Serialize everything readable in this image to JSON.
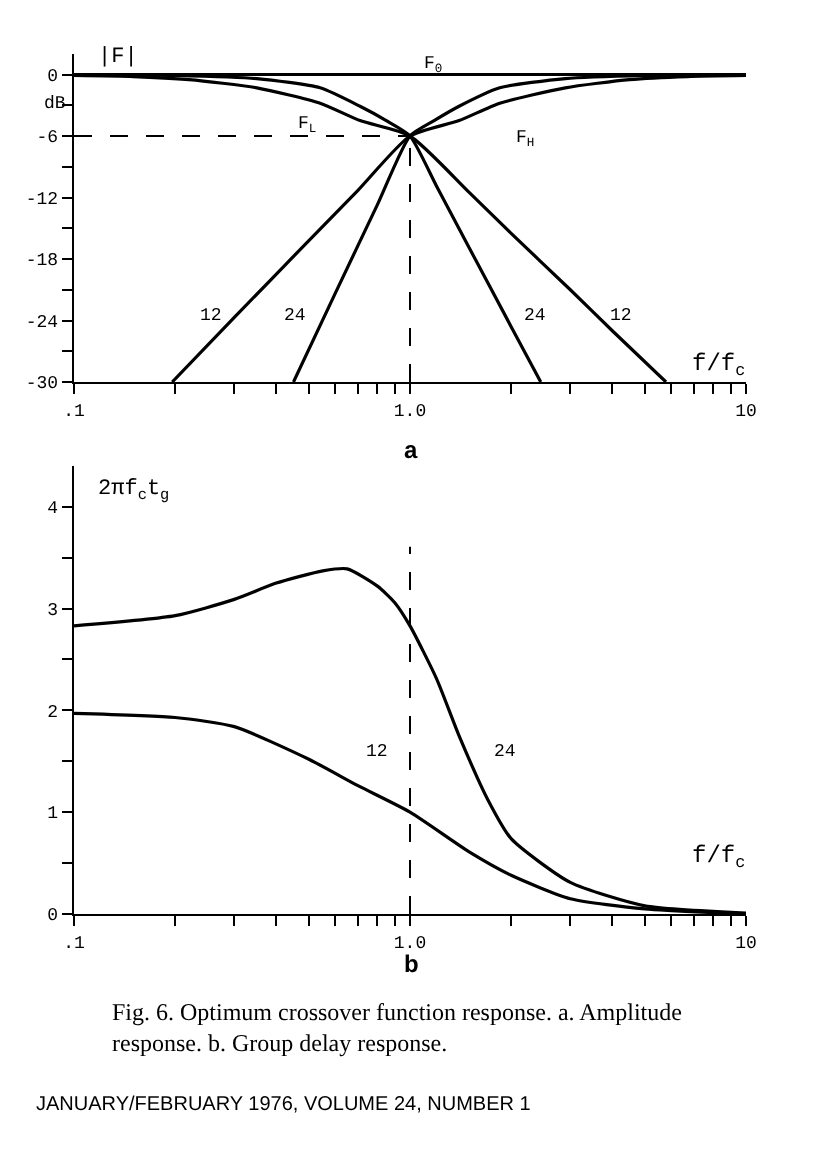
{
  "chart_data": [
    {
      "type": "line",
      "title": "a",
      "xlabel": "f/f$_{c}$",
      "ylabel": "|F|",
      "log": "x",
      "marker": "none",
      "line_style": "solid",
      "xlim": [
        0.1,
        10
      ],
      "ylim": [
        -30,
        2
      ],
      "xticks": [
        {
          "value": 0.1,
          "label": ".1"
        },
        {
          "value": 0.2,
          "label": null
        },
        {
          "value": 0.3,
          "label": null
        },
        {
          "value": 0.4,
          "label": null
        },
        {
          "value": 0.5,
          "label": null
        },
        {
          "value": 0.6,
          "label": null
        },
        {
          "value": 0.7,
          "label": null
        },
        {
          "value": 0.8,
          "label": null
        },
        {
          "value": 0.9,
          "label": null
        },
        {
          "value": 1,
          "label": "1.0"
        },
        {
          "value": 2,
          "label": null
        },
        {
          "value": 3,
          "label": null
        },
        {
          "value": 4,
          "label": null
        },
        {
          "value": 5,
          "label": null
        },
        {
          "value": 6,
          "label": null
        },
        {
          "value": 7,
          "label": null
        },
        {
          "value": 8,
          "label": null
        },
        {
          "value": 9,
          "label": null
        },
        {
          "value": 10,
          "label": "10"
        }
      ],
      "yticks": [
        0,
        {
          "value": -3,
          "label": null
        },
        -6,
        {
          "value": -9,
          "label": null
        },
        -12,
        {
          "value": -15,
          "label": null
        },
        -18,
        {
          "value": -21,
          "label": null
        },
        -24,
        {
          "value": -27,
          "label": null
        },
        -30
      ],
      "series": [
        {
          "color": "#000000",
          "x": [
            0.1,
            10
          ],
          "values": [
            0,
            0
          ]
        },
        {
          "color": "#000000",
          "x": [
            0.1,
            0.15,
            0.22,
            0.35,
            0.54,
            0.71,
            1,
            1.5,
            2,
            3,
            4,
            5.78
          ],
          "values": [
            -0.1,
            -0.2,
            -0.5,
            -1.3,
            -2.8,
            -4.5,
            -6,
            -11.5,
            -15.5,
            -21,
            -25,
            -30
          ]
        },
        {
          "color": "#000000",
          "x": [
            0.1,
            0.2,
            0.35,
            0.54,
            0.71,
            0.85,
            1,
            1.2,
            1.5,
            2,
            2.45
          ],
          "values": [
            0,
            -0.1,
            -0.4,
            -1.3,
            -3.1,
            -4.5,
            -6,
            -10.9,
            -16.9,
            -24.6,
            -30
          ]
        },
        {
          "color": "#000000",
          "x": [
            0.45,
            0.6,
            0.8,
            1,
            1.18,
            1.4,
            1.85,
            2.9,
            5,
            10
          ],
          "values": [
            -30,
            -21.3,
            -12.7,
            -6,
            -4.5,
            -3.1,
            -1.3,
            -0.4,
            -0.1,
            0
          ]
        },
        {
          "color": "#000000",
          "x": [
            0.196,
            0.3,
            0.5,
            0.7,
            1,
            1.4,
            1.85,
            2.9,
            4.5,
            6.7,
            10
          ],
          "values": [
            -30,
            -23.7,
            -16.2,
            -11.3,
            -6,
            -4.5,
            -2.8,
            -1.3,
            -0.5,
            -0.2,
            -0.1
          ]
        }
      ],
      "ref_lines": [
        {
          "axis": "x",
          "value": 1,
          "color": "#000000",
          "line_style": "dashed"
        },
        {
          "axis": "y",
          "value": -6,
          "color": "#000000",
          "line_style": "dashed"
        }
      ],
      "annotations": [
        "dB",
        "F$_{0}$",
        "F$_{L}$",
        "F$_{H}$",
        "12",
        "24",
        "24",
        "12"
      ]
    },
    {
      "type": "line",
      "title": "b",
      "xlabel": "f/f$_{c}$",
      "ylabel": "2πf$_{c}$t$_{g}$",
      "log": "x",
      "marker": "none",
      "line_style": "solid",
      "xlim": [
        0.1,
        10
      ],
      "ylim": [
        0,
        4.4
      ],
      "xticks": [
        {
          "value": 0.1,
          "label": ".1"
        },
        {
          "value": 0.2,
          "label": null
        },
        {
          "value": 0.3,
          "label": null
        },
        {
          "value": 0.4,
          "label": null
        },
        {
          "value": 0.5,
          "label": null
        },
        {
          "value": 0.6,
          "label": null
        },
        {
          "value": 0.7,
          "label": null
        },
        {
          "value": 0.8,
          "label": null
        },
        {
          "value": 0.9,
          "label": null
        },
        {
          "value": 1,
          "label": "1.0"
        },
        {
          "value": 2,
          "label": null
        },
        {
          "value": 3,
          "label": null
        },
        {
          "value": 4,
          "label": null
        },
        {
          "value": 5,
          "label": null
        },
        {
          "value": 6,
          "label": null
        },
        {
          "value": 7,
          "label": null
        },
        {
          "value": 8,
          "label": null
        },
        {
          "value": 9,
          "label": null
        },
        {
          "value": 10,
          "label": "10"
        }
      ],
      "yticks": [
        0,
        {
          "value": 0.5,
          "label": null
        },
        1,
        {
          "value": 1.5,
          "label": null
        },
        2,
        {
          "value": 2.5,
          "label": null
        },
        3,
        {
          "value": 3.5,
          "label": null
        },
        4
      ],
      "series": [
        {
          "color": "#000000",
          "x": [
            0.1,
            0.2,
            0.3,
            0.5,
            0.7,
            1,
            1.5,
            2,
            3,
            5,
            10
          ],
          "values": [
            1.97,
            1.93,
            1.84,
            1.52,
            1.26,
            1.0,
            0.61,
            0.38,
            0.15,
            0.05,
            0.0
          ]
        },
        {
          "color": "#000000",
          "x": [
            0.1,
            0.2,
            0.3,
            0.4,
            0.55,
            0.65,
            0.8,
            0.9,
            1,
            1.2,
            1.4,
            1.7,
            2,
            3,
            5,
            10
          ],
          "values": [
            2.83,
            2.93,
            3.09,
            3.25,
            3.37,
            3.39,
            3.22,
            3.06,
            2.83,
            2.31,
            1.75,
            1.13,
            0.74,
            0.31,
            0.08,
            0.01
          ]
        }
      ],
      "ref_lines": [
        {
          "axis": "x",
          "value": 1,
          "color": "#000000",
          "line_style": "dashed"
        }
      ],
      "annotations": [
        "12",
        "24",
        "Fig. 6. Optimum crossover function response. a. Amplitude response. b. Group delay response.",
        "JANUARY/FEBRUARY 1976, VOLUME 24, NUMBER 1"
      ]
    }
  ]
}
